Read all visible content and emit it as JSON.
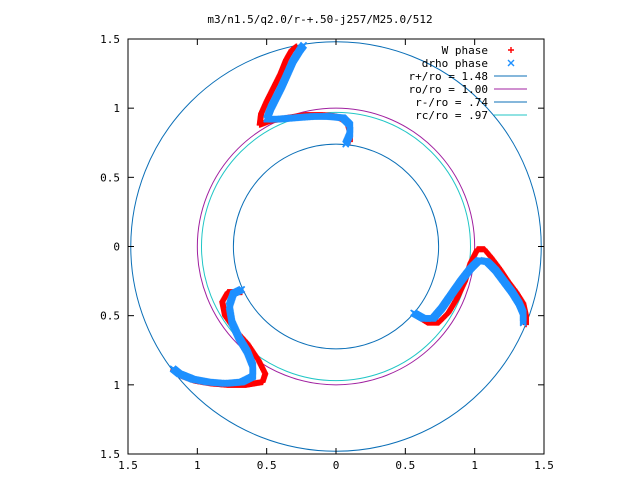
{
  "chart_data": {
    "type": "scatter",
    "title": "m3/n1.5/q2.0/r-+.50-j257/M25.0/512",
    "xlabel": "",
    "ylabel": "",
    "xlim": [
      -1.5,
      1.5
    ],
    "ylim": [
      -1.5,
      1.5
    ],
    "x_ticks": [
      {
        "value": -1.5,
        "label": "1.5"
      },
      {
        "value": -1.0,
        "label": "1"
      },
      {
        "value": -0.5,
        "label": "0.5"
      },
      {
        "value": 0.0,
        "label": "0"
      },
      {
        "value": 0.5,
        "label": "0.5"
      },
      {
        "value": 1.0,
        "label": "1"
      },
      {
        "value": 1.5,
        "label": "1.5"
      }
    ],
    "y_ticks": [
      {
        "value": 1.5,
        "label": "1.5"
      },
      {
        "value": 1.0,
        "label": "1"
      },
      {
        "value": 0.5,
        "label": "0.5"
      },
      {
        "value": 0.0,
        "label": "0"
      },
      {
        "value": -0.5,
        "label": "0.5"
      },
      {
        "value": -1.0,
        "label": "1"
      },
      {
        "value": -1.5,
        "label": "1.5"
      }
    ],
    "grid": false,
    "legend_position": "top-right",
    "circles": [
      {
        "name": "r+/ro = 1.48",
        "radius": 1.48,
        "color": "#0b6fb7"
      },
      {
        "name": "ro/ro = 1.00",
        "radius": 1.0,
        "color": "#a020a0"
      },
      {
        "name": "r-/ro = .74",
        "radius": 0.74,
        "color": "#0b6fb7"
      },
      {
        "name": "rc/ro = .97",
        "radius": 0.97,
        "color": "#21c6c6"
      }
    ],
    "series": [
      {
        "name": "W phase",
        "marker": "+",
        "color": "#ff0000",
        "arms": [
          [
            [
              0.1,
              0.76
            ],
            [
              0.1,
              0.83
            ],
            [
              0.08,
              0.9
            ],
            [
              0.0,
              0.94
            ],
            [
              -0.1,
              0.95
            ],
            [
              -0.22,
              0.95
            ],
            [
              -0.35,
              0.93
            ],
            [
              -0.47,
              0.91
            ],
            [
              -0.55,
              0.88
            ],
            [
              -0.54,
              0.96
            ],
            [
              -0.5,
              1.05
            ],
            [
              -0.45,
              1.15
            ],
            [
              -0.4,
              1.25
            ],
            [
              -0.36,
              1.35
            ],
            [
              -0.32,
              1.42
            ],
            [
              -0.28,
              1.45
            ]
          ],
          [
            [
              0.58,
              -0.5
            ],
            [
              0.66,
              -0.55
            ],
            [
              0.74,
              -0.55
            ],
            [
              0.81,
              -0.48
            ],
            [
              0.87,
              -0.38
            ],
            [
              0.93,
              -0.25
            ],
            [
              0.97,
              -0.12
            ],
            [
              1.02,
              -0.02
            ],
            [
              1.07,
              -0.02
            ],
            [
              1.12,
              -0.08
            ],
            [
              1.18,
              -0.16
            ],
            [
              1.24,
              -0.25
            ],
            [
              1.3,
              -0.33
            ],
            [
              1.35,
              -0.41
            ],
            [
              1.37,
              -0.5
            ],
            [
              1.37,
              -0.57
            ]
          ],
          [
            [
              -0.68,
              -0.33
            ],
            [
              -0.78,
              -0.33
            ],
            [
              -0.82,
              -0.4
            ],
            [
              -0.8,
              -0.5
            ],
            [
              -0.73,
              -0.6
            ],
            [
              -0.64,
              -0.7
            ],
            [
              -0.56,
              -0.82
            ],
            [
              -0.51,
              -0.92
            ],
            [
              -0.53,
              -0.98
            ],
            [
              -0.65,
              -1.0
            ],
            [
              -0.78,
              -1.0
            ],
            [
              -0.9,
              -0.99
            ],
            [
              -1.02,
              -0.97
            ],
            [
              -1.13,
              -0.93
            ],
            [
              -1.18,
              -0.89
            ]
          ]
        ]
      },
      {
        "name": "drho phase",
        "marker": "x",
        "color": "#1e90ff",
        "arms": [
          [
            [
              0.07,
              0.74
            ],
            [
              0.1,
              0.81
            ],
            [
              0.1,
              0.88
            ],
            [
              0.05,
              0.93
            ],
            [
              -0.05,
              0.94
            ],
            [
              -0.17,
              0.94
            ],
            [
              -0.3,
              0.93
            ],
            [
              -0.42,
              0.92
            ],
            [
              -0.5,
              0.92
            ],
            [
              -0.47,
              1.0
            ],
            [
              -0.43,
              1.08
            ],
            [
              -0.39,
              1.16
            ],
            [
              -0.35,
              1.25
            ],
            [
              -0.31,
              1.34
            ],
            [
              -0.26,
              1.42
            ],
            [
              -0.23,
              1.46
            ]
          ],
          [
            [
              0.56,
              -0.48
            ],
            [
              0.63,
              -0.52
            ],
            [
              0.7,
              -0.52
            ],
            [
              0.76,
              -0.45
            ],
            [
              0.83,
              -0.35
            ],
            [
              0.9,
              -0.25
            ],
            [
              0.97,
              -0.16
            ],
            [
              1.03,
              -0.1
            ],
            [
              1.09,
              -0.11
            ],
            [
              1.15,
              -0.17
            ],
            [
              1.21,
              -0.25
            ],
            [
              1.27,
              -0.33
            ],
            [
              1.32,
              -0.41
            ],
            [
              1.35,
              -0.48
            ],
            [
              1.35,
              -0.56
            ]
          ],
          [
            [
              -0.68,
              -0.31
            ],
            [
              -0.74,
              -0.34
            ],
            [
              -0.77,
              -0.43
            ],
            [
              -0.75,
              -0.55
            ],
            [
              -0.7,
              -0.66
            ],
            [
              -0.64,
              -0.76
            ],
            [
              -0.6,
              -0.86
            ],
            [
              -0.6,
              -0.94
            ],
            [
              -0.68,
              -0.98
            ],
            [
              -0.8,
              -0.99
            ],
            [
              -0.92,
              -0.98
            ],
            [
              -1.03,
              -0.96
            ],
            [
              -1.13,
              -0.92
            ],
            [
              -1.18,
              -0.88
            ]
          ]
        ]
      }
    ]
  }
}
